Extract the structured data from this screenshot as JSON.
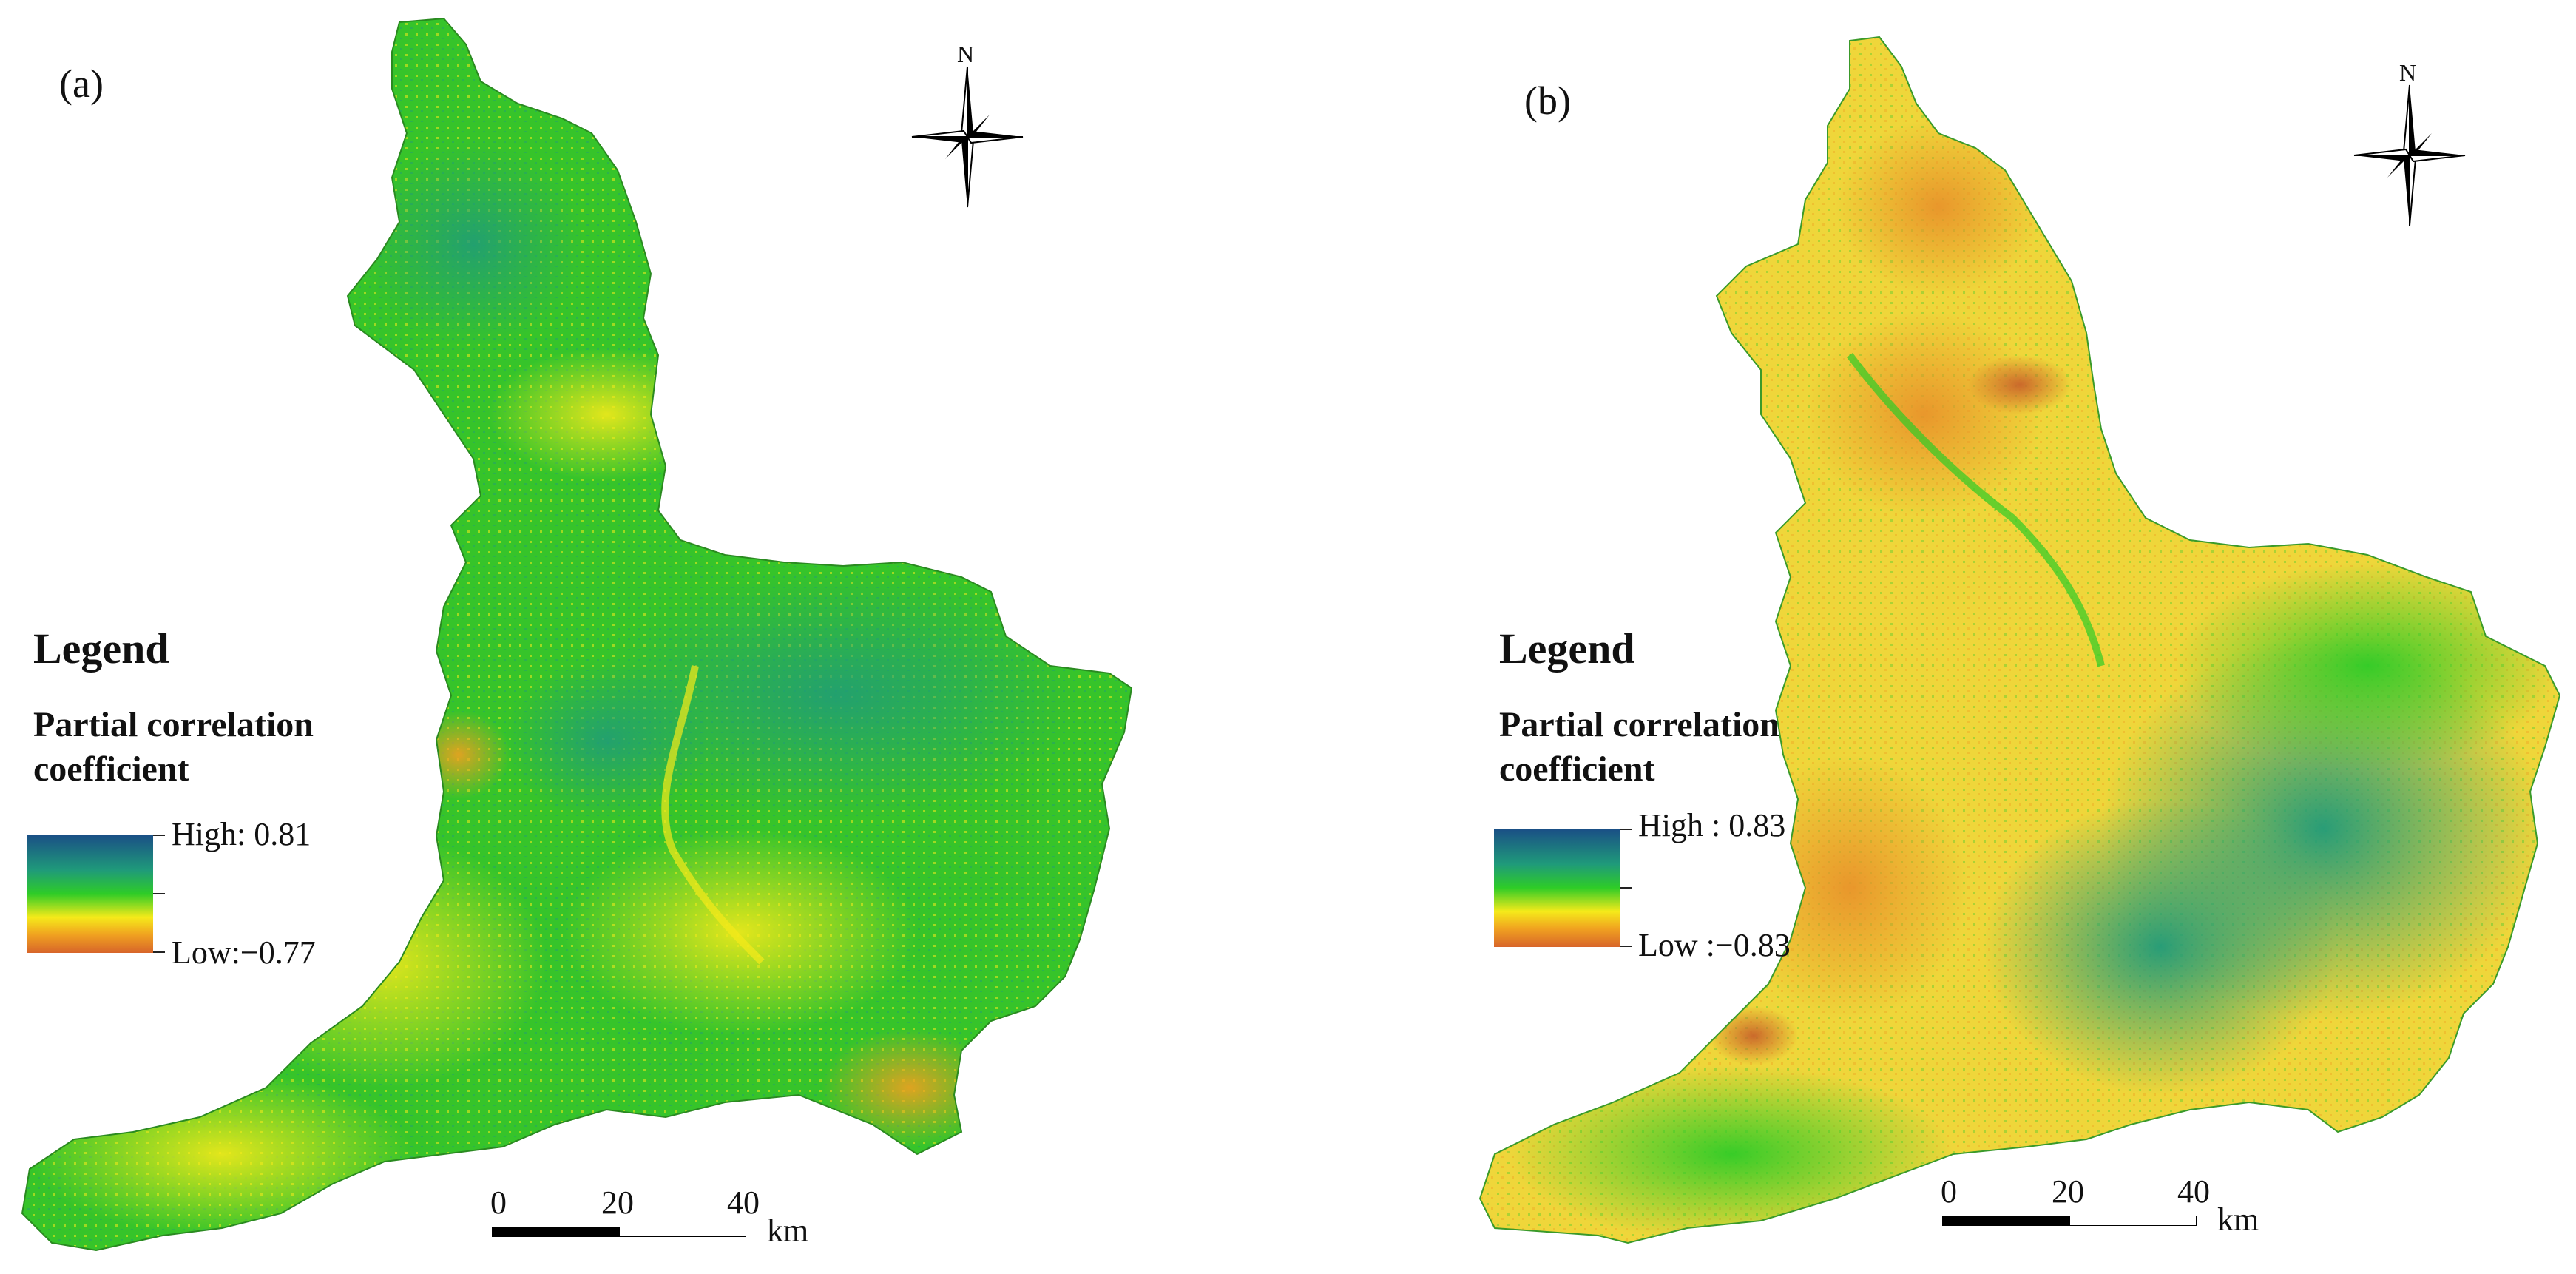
{
  "colors": {
    "high": "#1a4e86",
    "teal": "#1f9a7a",
    "green": "#2ecc27",
    "yellow": "#f5ea1a",
    "orange": "#f0a020",
    "low": "#d8652a"
  },
  "panels": [
    {
      "label": "(a)",
      "north_letter": "N",
      "legend": {
        "heading": "Legend",
        "subtitle_line1": "Partial correlation",
        "subtitle_line2": "coefficient",
        "high_label": "High: 0.81",
        "low_label": "Low:−0.77"
      },
      "scalebar": {
        "ticks": [
          "0",
          "20",
          "40"
        ],
        "unit": "km"
      }
    },
    {
      "label": "(b)",
      "north_letter": "N",
      "legend": {
        "heading": "Legend",
        "subtitle_line1": "Partial correlation",
        "subtitle_line2": "coefficient",
        "high_label": "High : 0.83",
        "low_label": "Low :−0.83"
      },
      "scalebar": {
        "ticks": [
          "0",
          "20",
          "40"
        ],
        "unit": "km"
      }
    }
  ]
}
